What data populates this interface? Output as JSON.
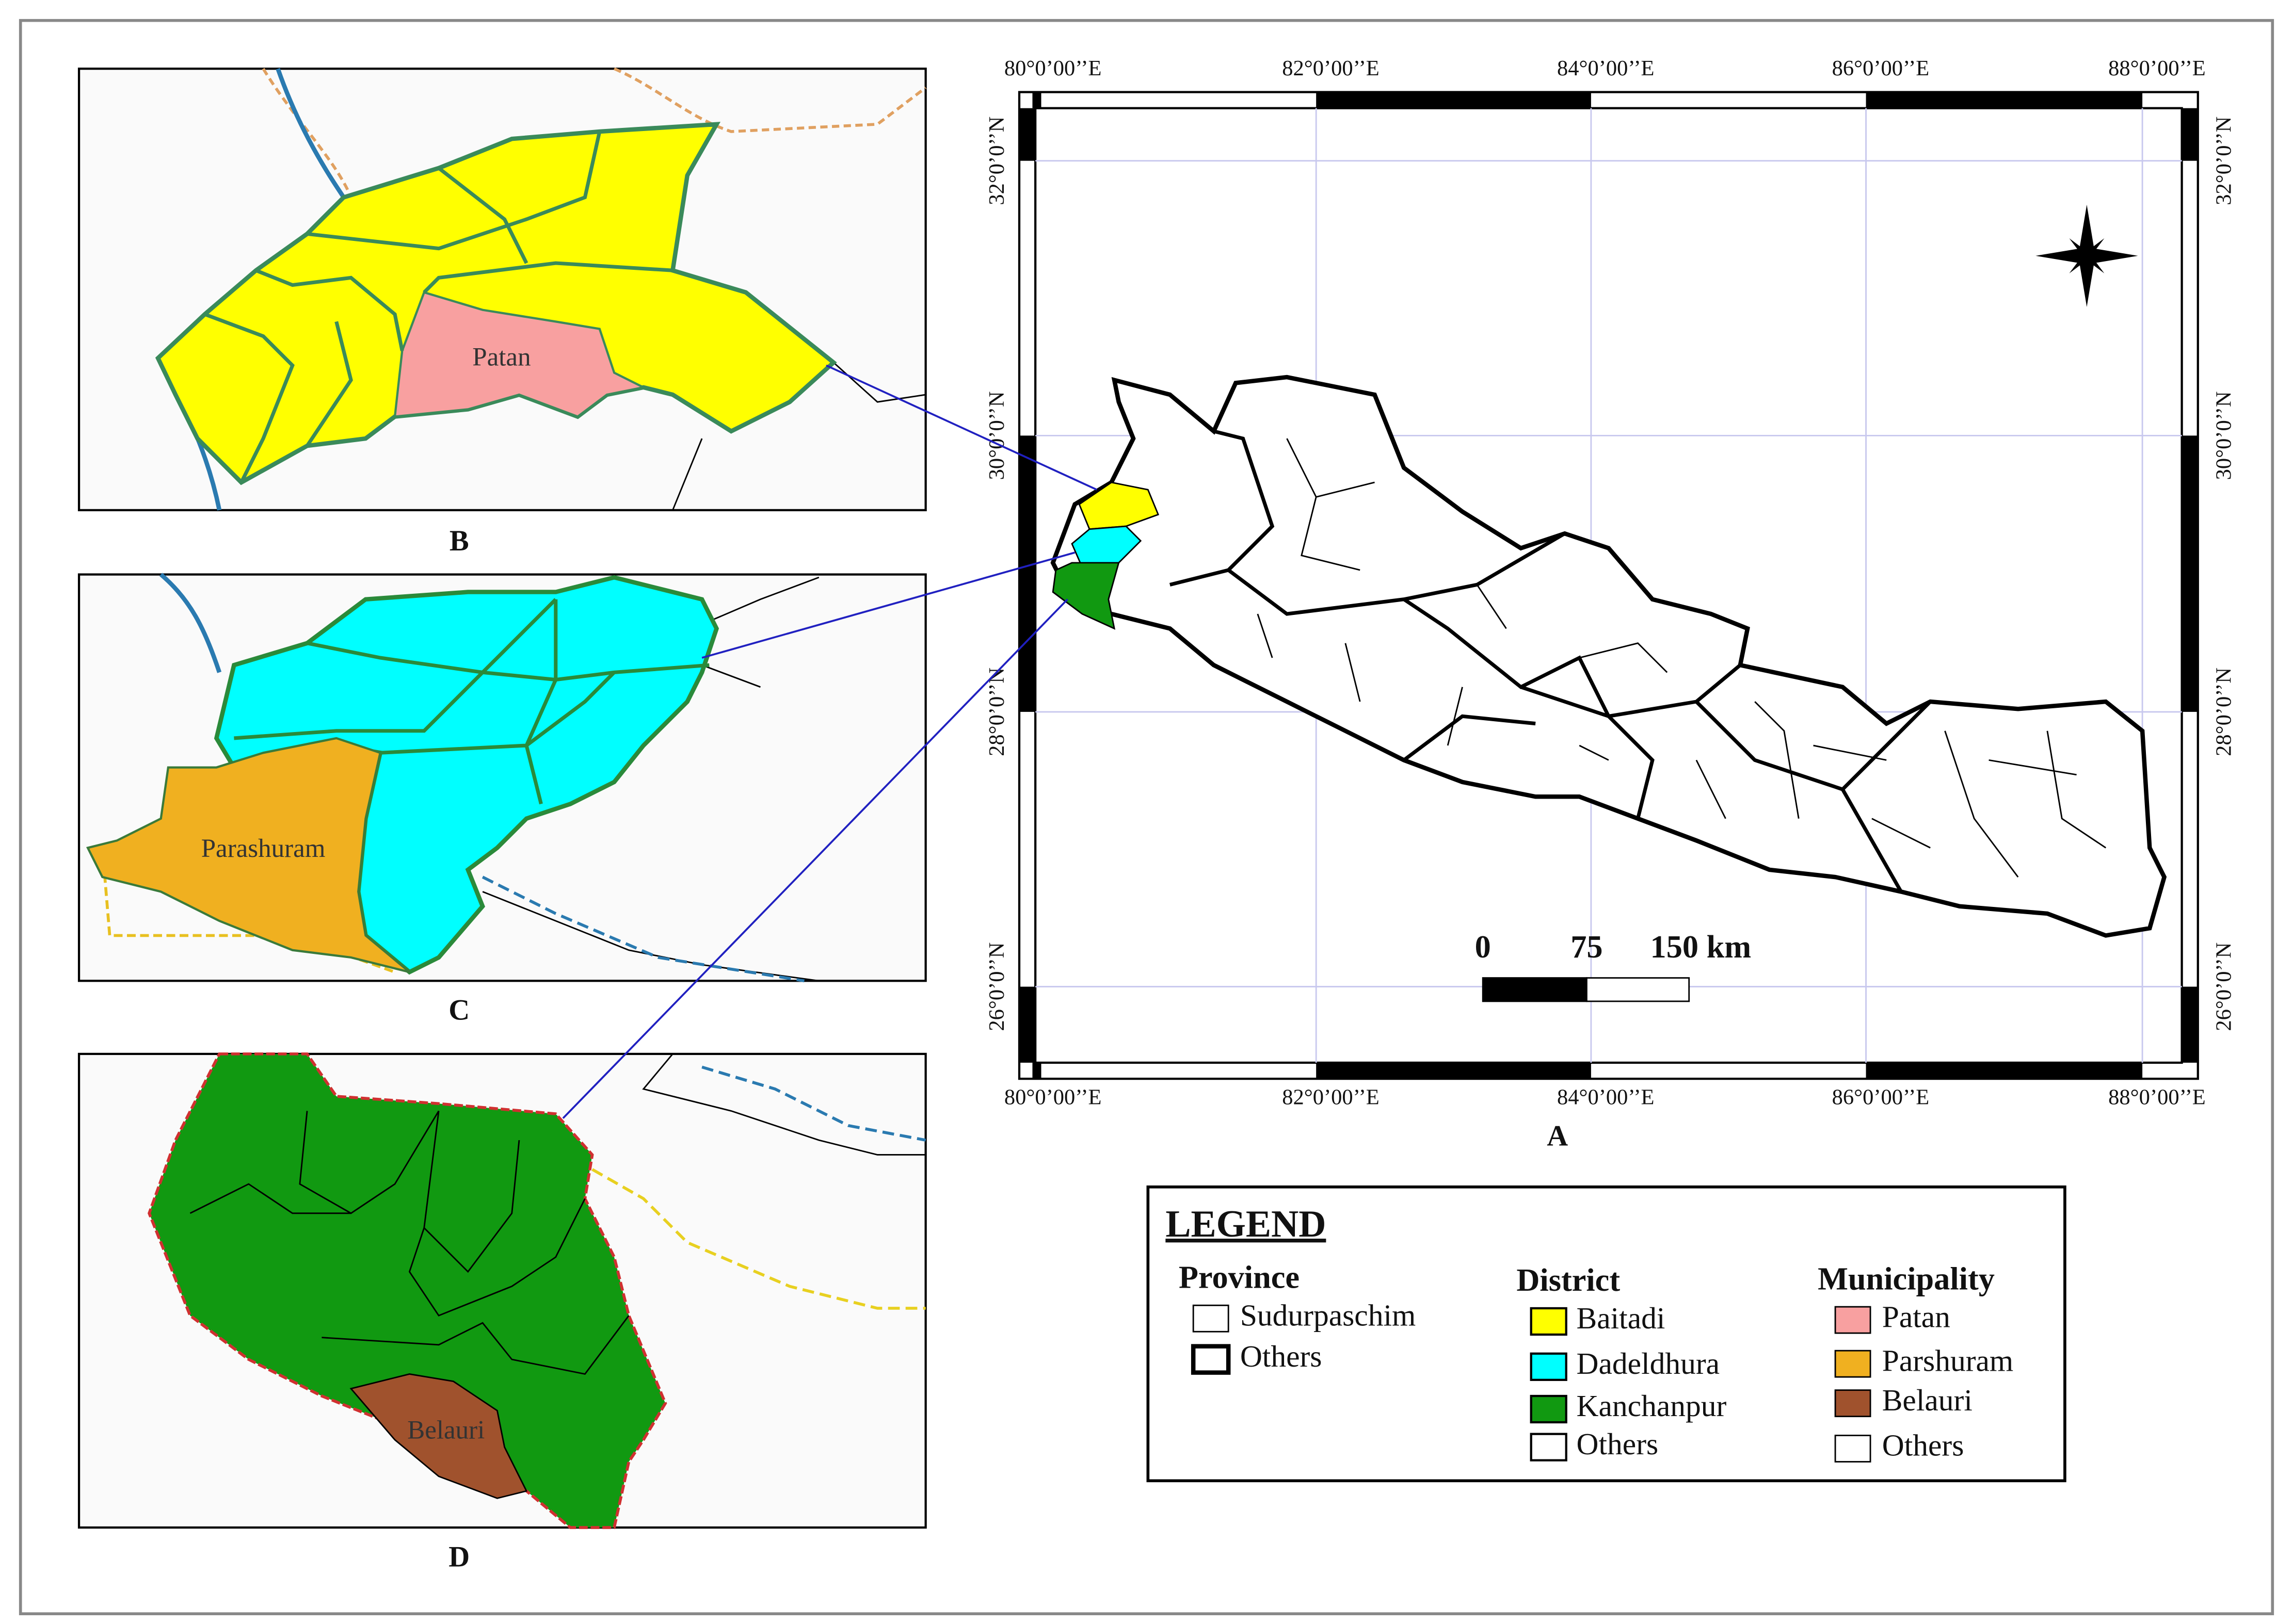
{
  "panels": {
    "b": {
      "label": "B",
      "municipality": "Patan"
    },
    "c": {
      "label": "C",
      "municipality": "Parashuram"
    },
    "d": {
      "label": "D",
      "municipality": "Belauri"
    },
    "a": {
      "label": "A"
    }
  },
  "map_a": {
    "longitude_labels": [
      "80°0’00’’E",
      "82°0’00’’E",
      "84°0’00’’E",
      "86°0’00’’E",
      "88°0’00’’E"
    ],
    "latitude_labels": [
      "32°0’0’’N",
      "30°0’0’’N",
      "28°0’0’’N",
      "26°0’0’’N"
    ],
    "scale_labels": [
      "0",
      "75",
      "150 km"
    ]
  },
  "legend": {
    "title": "LEGEND",
    "groups": [
      {
        "heading": "Province",
        "items": [
          "Sudurpaschim",
          "Others"
        ]
      },
      {
        "heading": "District",
        "items": [
          "Baitadi",
          "Dadeldhura",
          "Kanchanpur",
          "Others"
        ]
      },
      {
        "heading": "Municipality",
        "items": [
          "Patan",
          "Parshuram",
          "Belauri",
          "Others"
        ]
      }
    ]
  }
}
